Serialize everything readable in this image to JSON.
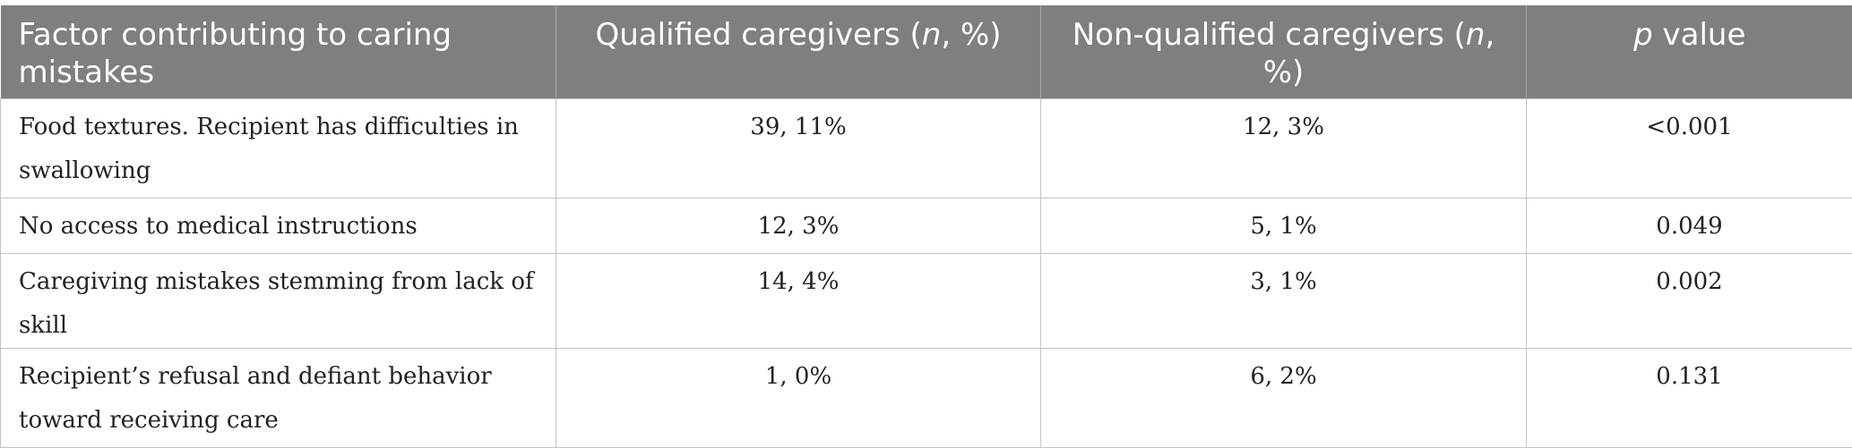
{
  "table": {
    "headers": [
      {
        "text": "Factor contributing to caring mistakes"
      },
      {
        "pre": "Qualified caregivers (",
        "it": "n",
        "post": ", %)"
      },
      {
        "pre": "Non-qualified caregivers (",
        "it": "n",
        "post": ", %)"
      },
      {
        "pre": "",
        "it": "p",
        "post": " value"
      }
    ],
    "rows": [
      {
        "factor": "Food textures. Recipient has difficulties in swallowing",
        "qualified": "39, 11%",
        "non_qualified": "12, 3%",
        "p_value": "<0.001"
      },
      {
        "factor": "No access to medical instructions",
        "qualified": "12, 3%",
        "non_qualified": "5, 1%",
        "p_value": "0.049"
      },
      {
        "factor": "Caregiving mistakes stemming from lack of skill",
        "qualified": "14, 4%",
        "non_qualified": "3, 1%",
        "p_value": "0.002"
      },
      {
        "factor": "Recipient’s refusal and defiant behavior toward receiving care",
        "qualified": "1, 0%",
        "non_qualified": "6, 2%",
        "p_value": "0.131"
      }
    ]
  }
}
